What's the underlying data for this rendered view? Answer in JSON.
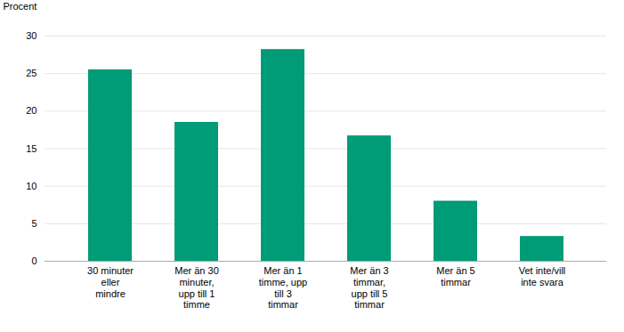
{
  "chart_data": {
    "type": "bar",
    "categories": [
      "30 minuter\neller\nmindre",
      "Mer än 30\nminuter,\nupp till 1\ntimme",
      "Mer än 1\ntimme, upp\ntill 3\ntimmar",
      "Mer än 3\ntimmar,\nupp till 5\ntimmar",
      "Mer än 5\ntimmar",
      "Vet inte/vill\ninte svara"
    ],
    "values": [
      25.5,
      18.5,
      28.2,
      16.7,
      8.0,
      3.3
    ],
    "color": "#009B77",
    "ylabel": "Procent",
    "ylim": [
      0,
      30
    ],
    "yticks": [
      0,
      5,
      10,
      15,
      20,
      25,
      30
    ],
    "grid": true
  }
}
